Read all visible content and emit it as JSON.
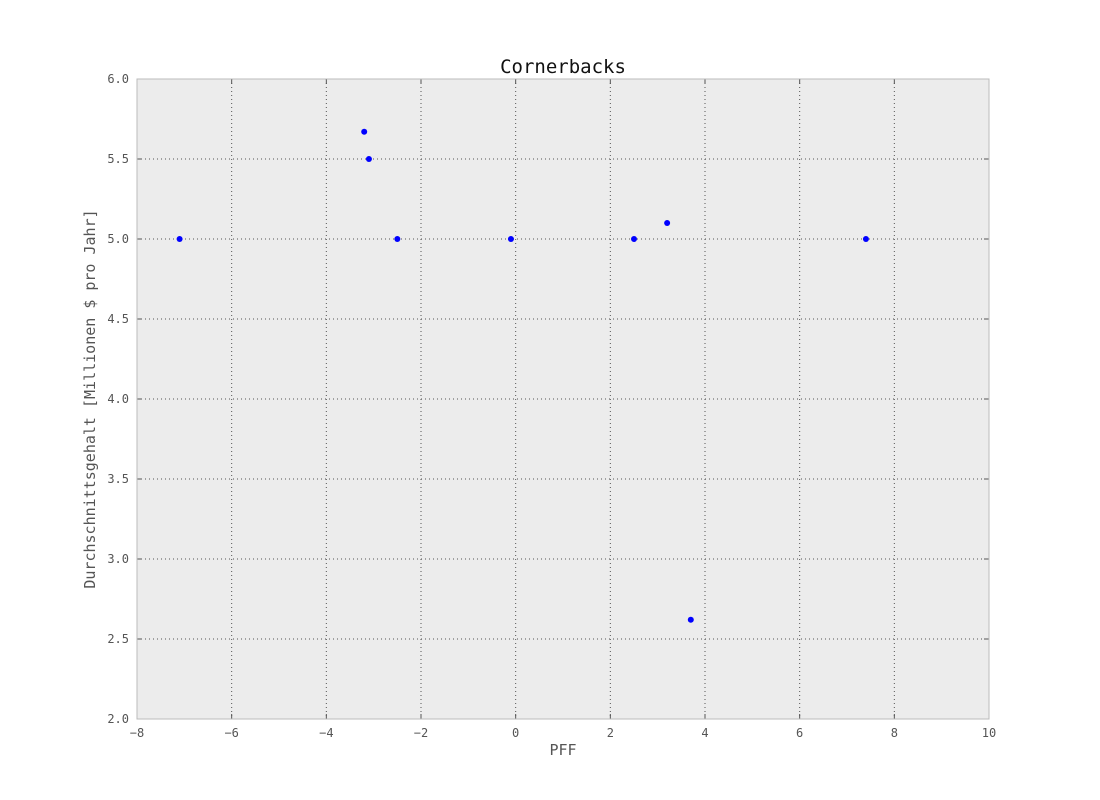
{
  "chart_data": {
    "type": "scatter",
    "title": "Cornerbacks",
    "xlabel": "PFF",
    "ylabel": "Durchschnittsgehalt [Millionen $ pro Jahr]",
    "xlim": [
      -8,
      10
    ],
    "ylim": [
      2.0,
      6.0
    ],
    "xticks": [
      -8,
      -6,
      -4,
      -2,
      0,
      2,
      4,
      6,
      8,
      10
    ],
    "xtick_labels": [
      "−8",
      "−6",
      "−4",
      "−2",
      "0",
      "2",
      "4",
      "6",
      "8",
      "10"
    ],
    "yticks": [
      2.0,
      2.5,
      3.0,
      3.5,
      4.0,
      4.5,
      5.0,
      5.5,
      6.0
    ],
    "ytick_labels": [
      "2.0",
      "2.5",
      "3.0",
      "3.5",
      "4.0",
      "4.5",
      "5.0",
      "5.5",
      "6.0"
    ],
    "grid": true,
    "colors": {
      "marker": "#0000ff",
      "plot_background": "#ececec",
      "frame": "#bbbbbb"
    },
    "series": [
      {
        "x": [
          -7.1,
          -3.2,
          -3.1,
          -2.5,
          -0.1,
          2.5,
          3.2,
          3.7,
          7.4
        ],
        "y": [
          5.0,
          5.67,
          5.5,
          5.0,
          5.0,
          5.0,
          5.1,
          2.62,
          5.0
        ]
      }
    ]
  }
}
